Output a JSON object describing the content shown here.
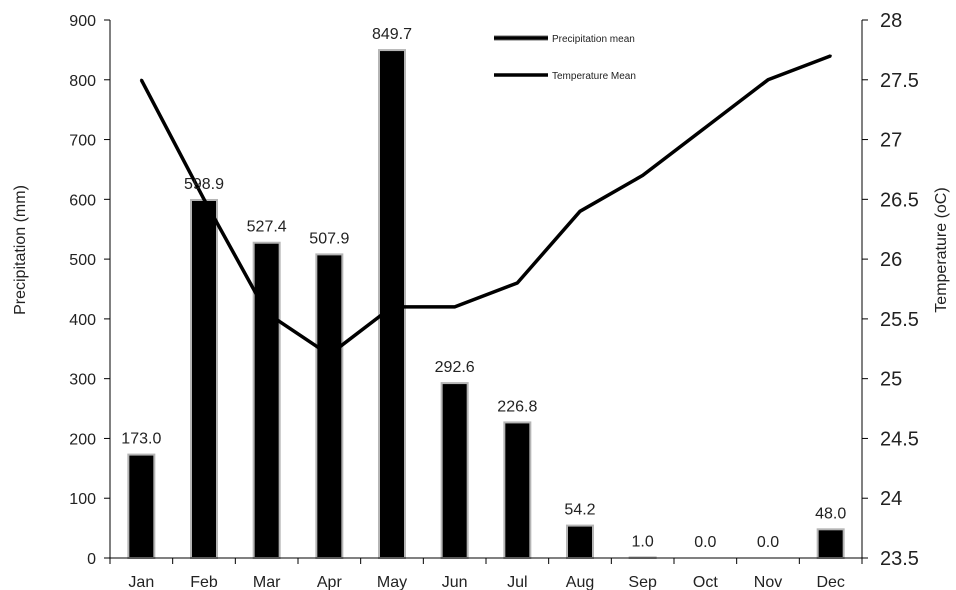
{
  "chart_data": {
    "type": "bar",
    "categories": [
      "Jan",
      "Feb",
      "Mar",
      "Apr",
      "May",
      "Jun",
      "Jul",
      "Aug",
      "Sep",
      "Oct",
      "Nov",
      "Dec"
    ],
    "series": [
      {
        "name": "Precipitation mean",
        "type": "bar",
        "axis": "left",
        "values": [
          173.0,
          598.9,
          527.4,
          507.9,
          849.7,
          292.6,
          226.8,
          54.2,
          1.0,
          0.0,
          0.0,
          48.0
        ],
        "labels": [
          "173.0",
          "598.9",
          "527.4",
          "507.9",
          "849.7",
          "292.6",
          "226.8",
          "54.2",
          "1.0",
          "0.0",
          "0.0",
          "48.0"
        ],
        "color": "#000000",
        "edge_color": "#b5b5b5"
      },
      {
        "name": "Temperature Mean",
        "type": "line",
        "axis": "right",
        "values": [
          27.5,
          26.5,
          25.55,
          25.2,
          25.6,
          25.6,
          25.8,
          26.4,
          26.7,
          27.1,
          27.5,
          27.7
        ],
        "color": "#000000"
      }
    ],
    "ylabel": "Precipitation  (mm)",
    "ylabel_right": "Temperature  (oC)",
    "ylim": [
      0,
      900
    ],
    "ylim_right": [
      23.5,
      28
    ],
    "yticks": [
      "0",
      "100",
      "200",
      "300",
      "400",
      "500",
      "600",
      "700",
      "800",
      "900"
    ],
    "yticks_right": [
      "23.5",
      "24",
      "24.5",
      "25",
      "25.5",
      "26",
      "26.5",
      "27",
      "27.5",
      "28"
    ],
    "grid": false,
    "legend_position": "top-center"
  }
}
